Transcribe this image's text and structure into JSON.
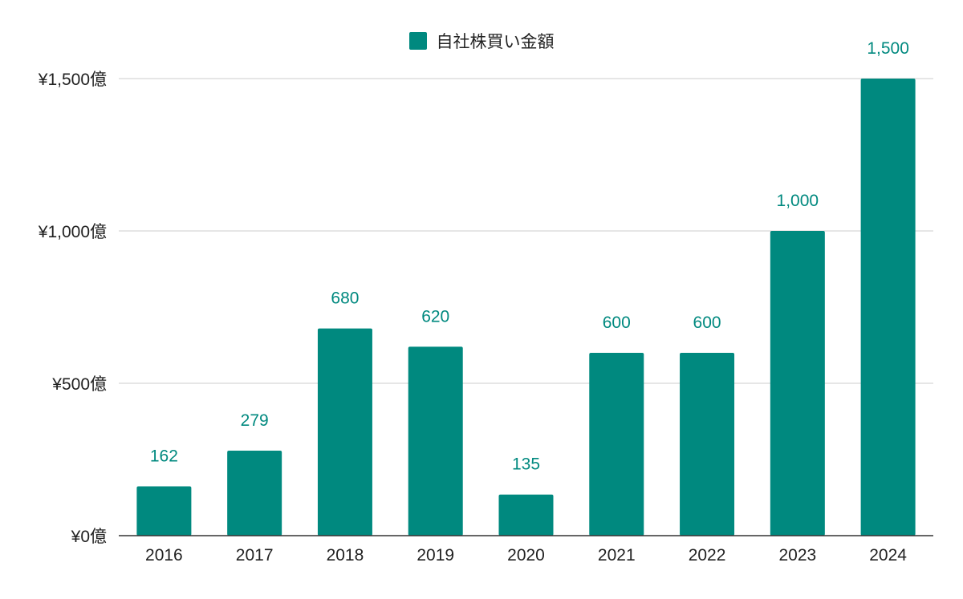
{
  "chart_data": {
    "type": "bar",
    "categories": [
      "2016",
      "2017",
      "2018",
      "2019",
      "2020",
      "2021",
      "2022",
      "2023",
      "2024"
    ],
    "series": [
      {
        "name": "自社株買い金額",
        "values": [
          162,
          279,
          680,
          620,
          135,
          600,
          600,
          1000,
          1500
        ],
        "data_labels": [
          "162",
          "279",
          "680",
          "620",
          "135",
          "600",
          "600",
          "1,000",
          "1,500"
        ]
      }
    ],
    "y_ticks": [
      0,
      500,
      1000,
      1500
    ],
    "y_tick_labels": [
      "¥0億",
      "¥500億",
      "¥1,000億",
      "¥1,500億"
    ],
    "ylim": [
      0,
      1500
    ],
    "legend_position": "top-center",
    "grid": true,
    "colors": {
      "bar": "#00897f",
      "data_label": "#00897f",
      "grid": "#cccccc",
      "axis": "#333333",
      "text": "#222222"
    }
  }
}
